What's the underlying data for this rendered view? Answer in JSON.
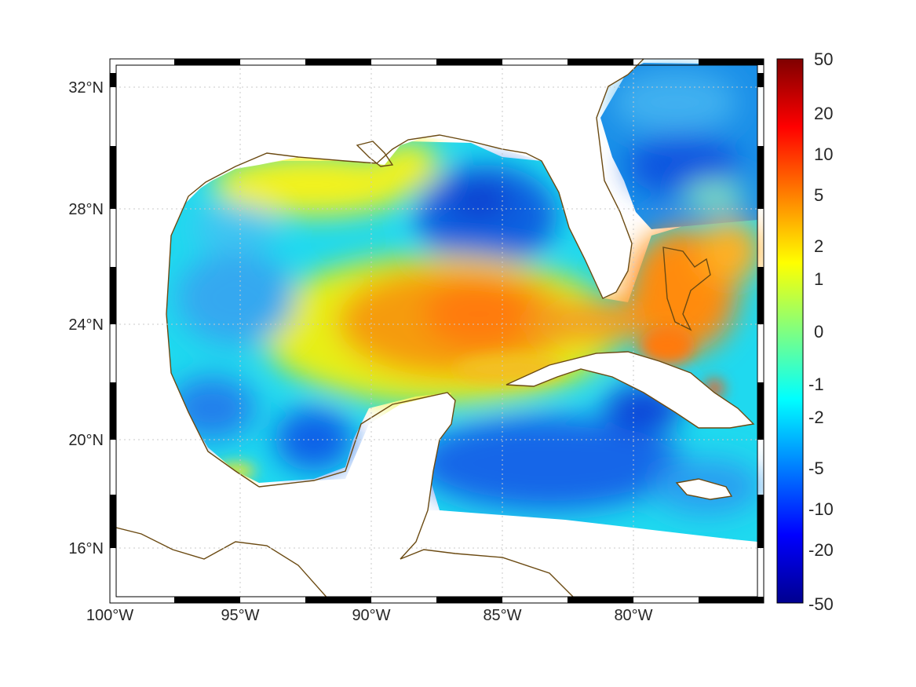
{
  "map": {
    "lon_ticks": [
      "100°W",
      "95°W",
      "90°W",
      "85°W",
      "80°W"
    ],
    "lat_ticks": [
      "32°N",
      "28°N",
      "24°N",
      "20°N",
      "16°N"
    ],
    "lon_extent": [
      -100,
      -75
    ],
    "lat_extent": [
      14.2,
      33
    ],
    "coastline_color": "#6b4a12",
    "grid_style": "dotted",
    "field_hotspots": [
      {
        "region": "central-gulf-loop-current",
        "level": "5"
      },
      {
        "region": "bahamas-bank",
        "level": "10"
      },
      {
        "region": "northeast-gulf-basin",
        "level": "-10"
      },
      {
        "region": "western-gulf-basin",
        "level": "-2"
      }
    ]
  },
  "colorbar": {
    "tick_labels": [
      "50",
      "20",
      "10",
      "5",
      "2",
      "1",
      "0",
      "-1",
      "-2",
      "-5",
      "-10",
      "-20",
      "-50"
    ],
    "colormap": "jet",
    "colors": [
      "#7f0000",
      "#ff0000",
      "#ff8000",
      "#ffff00",
      "#00ffff",
      "#0080ff",
      "#0000ff",
      "#00008f"
    ]
  }
}
